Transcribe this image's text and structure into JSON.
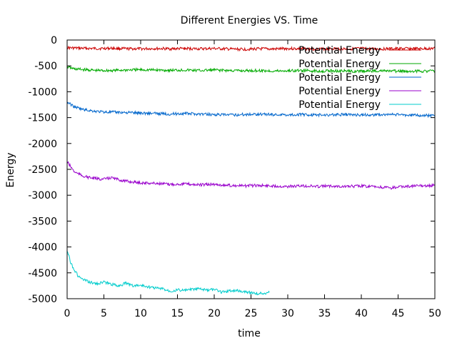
{
  "chart_data": {
    "type": "line",
    "title": "Different Energies VS. Time",
    "xlabel": "time",
    "ylabel": "Energy",
    "xlim": [
      0,
      50
    ],
    "ylim": [
      -5000,
      0
    ],
    "xticks": [
      0,
      5,
      10,
      15,
      20,
      25,
      30,
      35,
      40,
      45,
      50
    ],
    "yticks": [
      0,
      -500,
      -1000,
      -1500,
      -2000,
      -2500,
      -3000,
      -3500,
      -4000,
      -4500,
      -5000
    ],
    "grid": false,
    "legend_position": "top-right",
    "series": [
      {
        "name": "Potential Energy",
        "color": "#cc0000",
        "x": [
          0,
          2,
          4,
          6,
          8,
          10,
          12,
          14,
          16,
          18,
          20,
          22,
          24,
          26,
          28,
          30,
          32,
          34,
          36,
          38,
          40,
          42,
          44,
          46,
          48,
          50
        ],
        "y": [
          -150,
          -160,
          -165,
          -160,
          -170,
          -170,
          -165,
          -170,
          -165,
          -170,
          -165,
          -175,
          -180,
          -170,
          -175,
          -165,
          -170,
          -175,
          -165,
          -170,
          -165,
          -175,
          -170,
          -165,
          -170,
          -160
        ]
      },
      {
        "name": "Potential Energy",
        "color": "#00aa00",
        "x": [
          0,
          1,
          2,
          3,
          4,
          6,
          8,
          10,
          12,
          14,
          16,
          18,
          20,
          22,
          24,
          26,
          28,
          30,
          32,
          34,
          36,
          38,
          40,
          42,
          44,
          46,
          48,
          50
        ],
        "y": [
          -520,
          -560,
          -570,
          -580,
          -590,
          -590,
          -580,
          -575,
          -580,
          -585,
          -580,
          -590,
          -580,
          -590,
          -595,
          -590,
          -600,
          -595,
          -590,
          -600,
          -595,
          -600,
          -605,
          -595,
          -600,
          -605,
          -600,
          -600
        ]
      },
      {
        "name": "Potential Energy",
        "color": "#0066cc",
        "x": [
          0,
          1,
          2,
          3,
          4,
          5,
          6,
          8,
          10,
          12,
          14,
          16,
          18,
          20,
          22,
          24,
          26,
          28,
          30,
          32,
          34,
          36,
          38,
          40,
          42,
          44,
          46,
          48,
          50
        ],
        "y": [
          -1200,
          -1290,
          -1340,
          -1360,
          -1380,
          -1390,
          -1395,
          -1400,
          -1410,
          -1420,
          -1430,
          -1420,
          -1430,
          -1440,
          -1450,
          -1440,
          -1430,
          -1440,
          -1445,
          -1440,
          -1450,
          -1445,
          -1440,
          -1450,
          -1445,
          -1440,
          -1450,
          -1455,
          -1460
        ]
      },
      {
        "name": "Potential Energy",
        "color": "#9900cc",
        "x": [
          0,
          1,
          2,
          3,
          4,
          5,
          6,
          7,
          8,
          10,
          12,
          14,
          16,
          18,
          20,
          22,
          24,
          26,
          28,
          30,
          32,
          34,
          36,
          38,
          40,
          42,
          44,
          46,
          48,
          50
        ],
        "y": [
          -2350,
          -2550,
          -2620,
          -2660,
          -2680,
          -2690,
          -2660,
          -2700,
          -2730,
          -2760,
          -2770,
          -2790,
          -2780,
          -2800,
          -2790,
          -2810,
          -2820,
          -2810,
          -2820,
          -2830,
          -2820,
          -2830,
          -2820,
          -2830,
          -2820,
          -2840,
          -2860,
          -2830,
          -2820,
          -2810
        ]
      },
      {
        "name": "Potential Energy",
        "color": "#00cccc",
        "x": [
          0,
          0.5,
          1,
          1.5,
          2,
          3,
          4,
          5,
          6,
          7,
          8,
          9,
          10,
          11,
          12,
          13,
          14,
          15,
          16,
          17,
          18,
          19,
          20,
          21,
          22,
          23,
          24,
          25,
          26,
          27,
          27.5
        ],
        "y": [
          -4060,
          -4300,
          -4450,
          -4560,
          -4620,
          -4680,
          -4710,
          -4680,
          -4720,
          -4750,
          -4700,
          -4750,
          -4740,
          -4770,
          -4790,
          -4810,
          -4850,
          -4830,
          -4840,
          -4820,
          -4810,
          -4840,
          -4820,
          -4870,
          -4850,
          -4840,
          -4860,
          -4880,
          -4900,
          -4890,
          -4880
        ]
      }
    ]
  }
}
